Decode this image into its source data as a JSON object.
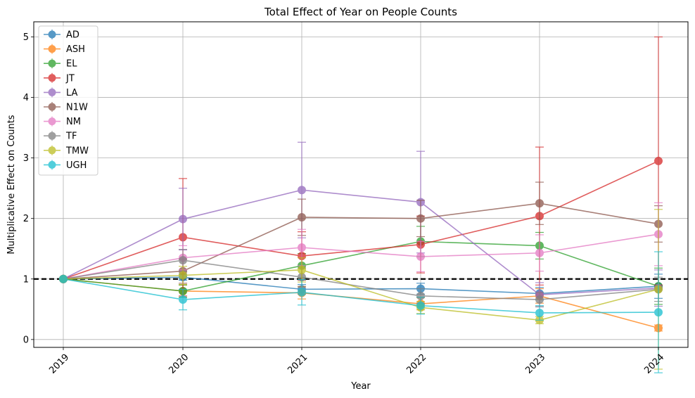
{
  "chart_data": {
    "type": "line",
    "title": "Total Effect of Year on People Counts",
    "xlabel": "Year",
    "ylabel": "Multiplicative Effect on Counts",
    "categories": [
      "2019",
      "2020",
      "2021",
      "2022",
      "2023",
      "2024"
    ],
    "ylim": [
      -0.13,
      5.25
    ],
    "yticks": [
      0,
      1,
      2,
      3,
      4,
      5
    ],
    "reference_line": 1,
    "grid": true,
    "legend_position": "top-left",
    "series": [
      {
        "name": "AD",
        "color": "#1f77b4",
        "values": [
          1,
          1.03,
          0.83,
          0.84,
          0.76,
          0.88
        ],
        "err": [
          0,
          0.05,
          0.08,
          0.09,
          0.1,
          0.2
        ]
      },
      {
        "name": "ASH",
        "color": "#ff7f0e",
        "values": [
          1,
          0.8,
          0.77,
          0.59,
          0.72,
          0.19
        ],
        "err": [
          0,
          0.1,
          0.1,
          0.1,
          0.12,
          0.05
        ]
      },
      {
        "name": "EL",
        "color": "#2ca02c",
        "values": [
          1,
          0.8,
          1.22,
          1.62,
          1.55,
          0.88
        ],
        "err": [
          0,
          0.1,
          0.2,
          0.25,
          0.22,
          0.3
        ]
      },
      {
        "name": "JT",
        "color": "#d62728",
        "values": [
          1,
          1.69,
          1.38,
          1.57,
          2.04,
          2.95
        ],
        "err": [
          0,
          0.97,
          0.4,
          0.47,
          1.14,
          2.05
        ]
      },
      {
        "name": "LA",
        "color": "#9467bd",
        "values": [
          1,
          1.99,
          2.47,
          2.27,
          0.74,
          0.85
        ],
        "err": [
          0,
          0.51,
          0.79,
          0.84,
          0.2,
          0.3
        ]
      },
      {
        "name": "N1W",
        "color": "#8c564b",
        "values": [
          1,
          1.13,
          2.02,
          2.0,
          2.25,
          1.91
        ],
        "err": [
          0,
          0.2,
          0.3,
          0.3,
          0.35,
          0.3
        ]
      },
      {
        "name": "NM",
        "color": "#e377c2",
        "values": [
          1,
          1.35,
          1.52,
          1.37,
          1.43,
          1.74
        ],
        "err": [
          0,
          0.2,
          0.3,
          0.25,
          0.3,
          0.52
        ]
      },
      {
        "name": "TF",
        "color": "#7f7f7f",
        "values": [
          1,
          1.31,
          1.03,
          0.72,
          0.66,
          0.83
        ],
        "err": [
          0,
          0.18,
          0.15,
          0.12,
          0.12,
          0.2
        ]
      },
      {
        "name": "TMW",
        "color": "#bcbd22",
        "values": [
          1,
          1.06,
          1.15,
          0.53,
          0.32,
          0.83
        ],
        "err": [
          0,
          0.15,
          0.2,
          0.1,
          0.06,
          1.32
        ]
      },
      {
        "name": "UGH",
        "color": "#17becf",
        "values": [
          1,
          0.66,
          0.78,
          0.56,
          0.44,
          0.45
        ],
        "err": [
          0,
          0.17,
          0.21,
          0.14,
          0.12,
          1.0
        ]
      }
    ]
  }
}
